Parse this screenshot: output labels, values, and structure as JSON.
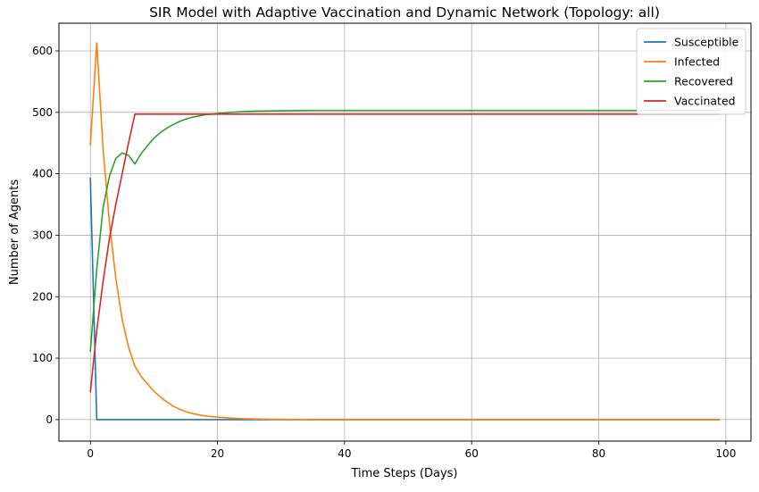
{
  "chart_data": {
    "type": "line",
    "title": "SIR Model with Adaptive Vaccination and Dynamic Network (Topology: all)",
    "xlabel": "Time Steps (Days)",
    "ylabel": "Number of Agents",
    "xlim": [
      -4.95,
      103.95
    ],
    "ylim": [
      -35,
      645
    ],
    "xticks": [
      0,
      20,
      40,
      60,
      80,
      100
    ],
    "yticks": [
      0,
      100,
      200,
      300,
      400,
      500,
      600
    ],
    "grid": true,
    "legend_position": "upper right",
    "series": [
      {
        "name": "Susceptible",
        "color": "#1f77b4",
        "x": [
          0,
          1,
          99
        ],
        "y": [
          393,
          0,
          0
        ]
      },
      {
        "name": "Infected",
        "color": "#ff7f0e",
        "x": [
          0,
          1,
          2,
          3,
          4,
          5,
          6,
          7,
          8,
          9,
          10,
          11,
          12,
          13,
          14,
          15,
          16,
          17,
          18,
          19,
          20,
          22,
          24,
          26,
          28,
          30,
          35,
          40,
          50,
          99
        ],
        "y": [
          447,
          613,
          440,
          320,
          230,
          163,
          118,
          87,
          70,
          58,
          46,
          37,
          29,
          22,
          17,
          13,
          10,
          8,
          6,
          5,
          4,
          2.5,
          1.5,
          1,
          0.6,
          0.3,
          0,
          0,
          0,
          0
        ]
      },
      {
        "name": "Recovered",
        "color": "#2ca02c",
        "x": [
          0,
          1,
          2,
          3,
          4,
          5,
          6,
          7,
          8,
          9,
          10,
          11,
          12,
          13,
          14,
          15,
          16,
          17,
          18,
          19,
          20,
          22,
          24,
          26,
          30,
          35,
          99
        ],
        "y": [
          111,
          245,
          345,
          396,
          425,
          434,
          430,
          416,
          433,
          446,
          458,
          467,
          474,
          480,
          485,
          489,
          492,
          494,
          496,
          497,
          498,
          500,
          501,
          502,
          502.5,
          503,
          503
        ]
      },
      {
        "name": "Vaccinated",
        "color": "#d62728",
        "x": [
          0,
          1,
          2,
          3,
          4,
          5,
          6,
          7,
          99
        ],
        "y": [
          45,
          145,
          225,
          295,
          350,
          400,
          450,
          497,
          497
        ]
      }
    ]
  }
}
